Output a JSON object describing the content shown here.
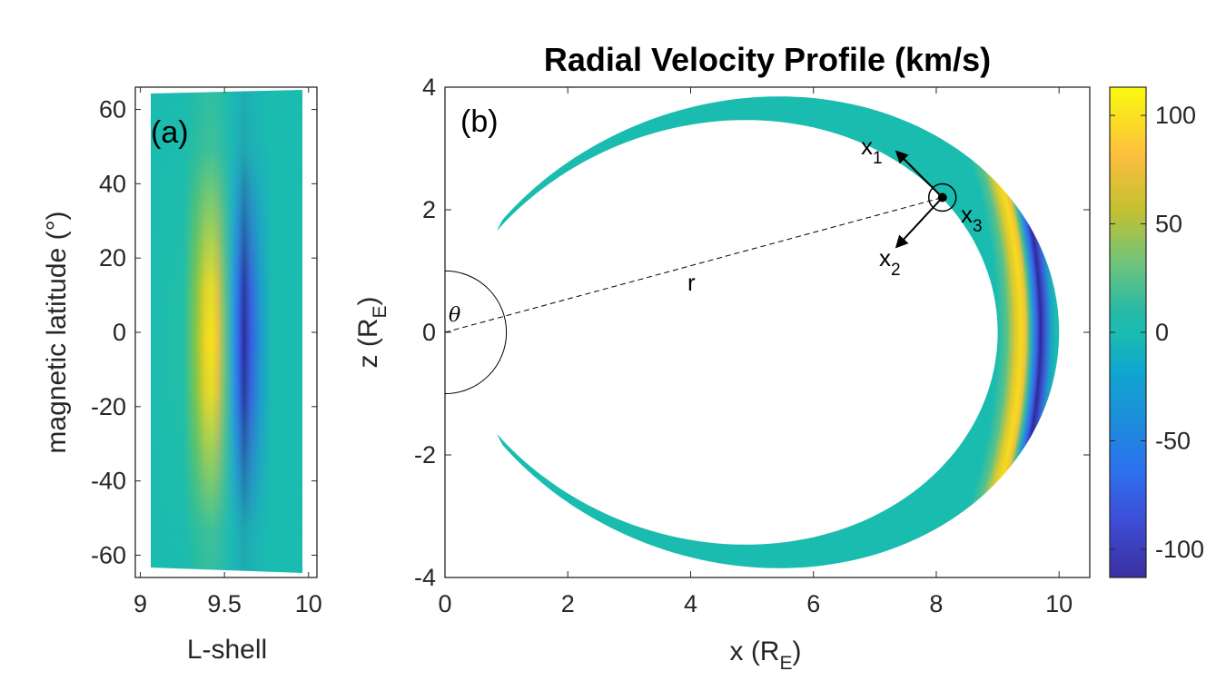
{
  "chart_data": [
    {
      "panel": "(a)",
      "type": "heatmap",
      "xlabel": "L-shell",
      "ylabel": "magnetic latitude (°)",
      "xlim": [
        8.97,
        10.05
      ],
      "ylim": [
        -66,
        66
      ],
      "xticks": [
        9,
        9.5,
        10
      ],
      "xtick_labels": [
        "9",
        "9.5",
        "10"
      ],
      "yticks": [
        60,
        40,
        20,
        0,
        -20,
        -40,
        -60
      ],
      "ytick_labels": [
        "60",
        "40",
        "20",
        "0",
        "-20",
        "-40",
        "-60"
      ],
      "field": "radial velocity (km/s)",
      "features": [
        {
          "L": 9.4,
          "lat": 0,
          "value": 110,
          "lat_halfwidth": 30,
          "L_halfwidth": 0.07
        },
        {
          "L": 9.62,
          "lat": -5,
          "value": -110,
          "lat_halfwidth": 30,
          "L_halfwidth": 0.06
        }
      ],
      "grid": false
    },
    {
      "panel": "(b)",
      "type": "heatmap",
      "title": "Radial Velocity Profile (km/s)",
      "xlabel": "x (R",
      "xlabel_sub": "E",
      "xlabel_end": ")",
      "ylabel": "z (R",
      "ylabel_sub": "E",
      "ylabel_end": ")",
      "xlim": [
        0,
        10.5
      ],
      "ylim": [
        -4,
        4
      ],
      "xticks": [
        0,
        2,
        4,
        6,
        8,
        10
      ],
      "xtick_labels": [
        "0",
        "2",
        "4",
        "6",
        "8",
        "10"
      ],
      "yticks": [
        4,
        2,
        0,
        -2,
        -4
      ],
      "ytick_labels": [
        "4",
        "2",
        "0",
        "-2",
        "-4"
      ],
      "field_lines": {
        "L_min": 9.0,
        "L_max": 10.0,
        "max_latitude_deg": 63
      },
      "features": [
        {
          "L": 9.4,
          "value": 110
        },
        {
          "L": 9.62,
          "value": -110
        }
      ],
      "annotations": {
        "r_label": "r",
        "theta_label": "θ",
        "x1": "x",
        "x1_sub": "1",
        "x2": "x",
        "x2_sub": "2",
        "x3": "x",
        "x3_sub": "3",
        "origin_point": [
          8.1,
          2.2
        ],
        "unit_circle_radius": 1
      },
      "colorbar": {
        "range": [
          -113,
          113
        ],
        "ticks": [
          100,
          50,
          0,
          -50,
          -100
        ],
        "tick_labels": [
          "100",
          "50",
          "0",
          "-50",
          "-100"
        ],
        "colormap": "parula"
      },
      "grid": false
    }
  ]
}
